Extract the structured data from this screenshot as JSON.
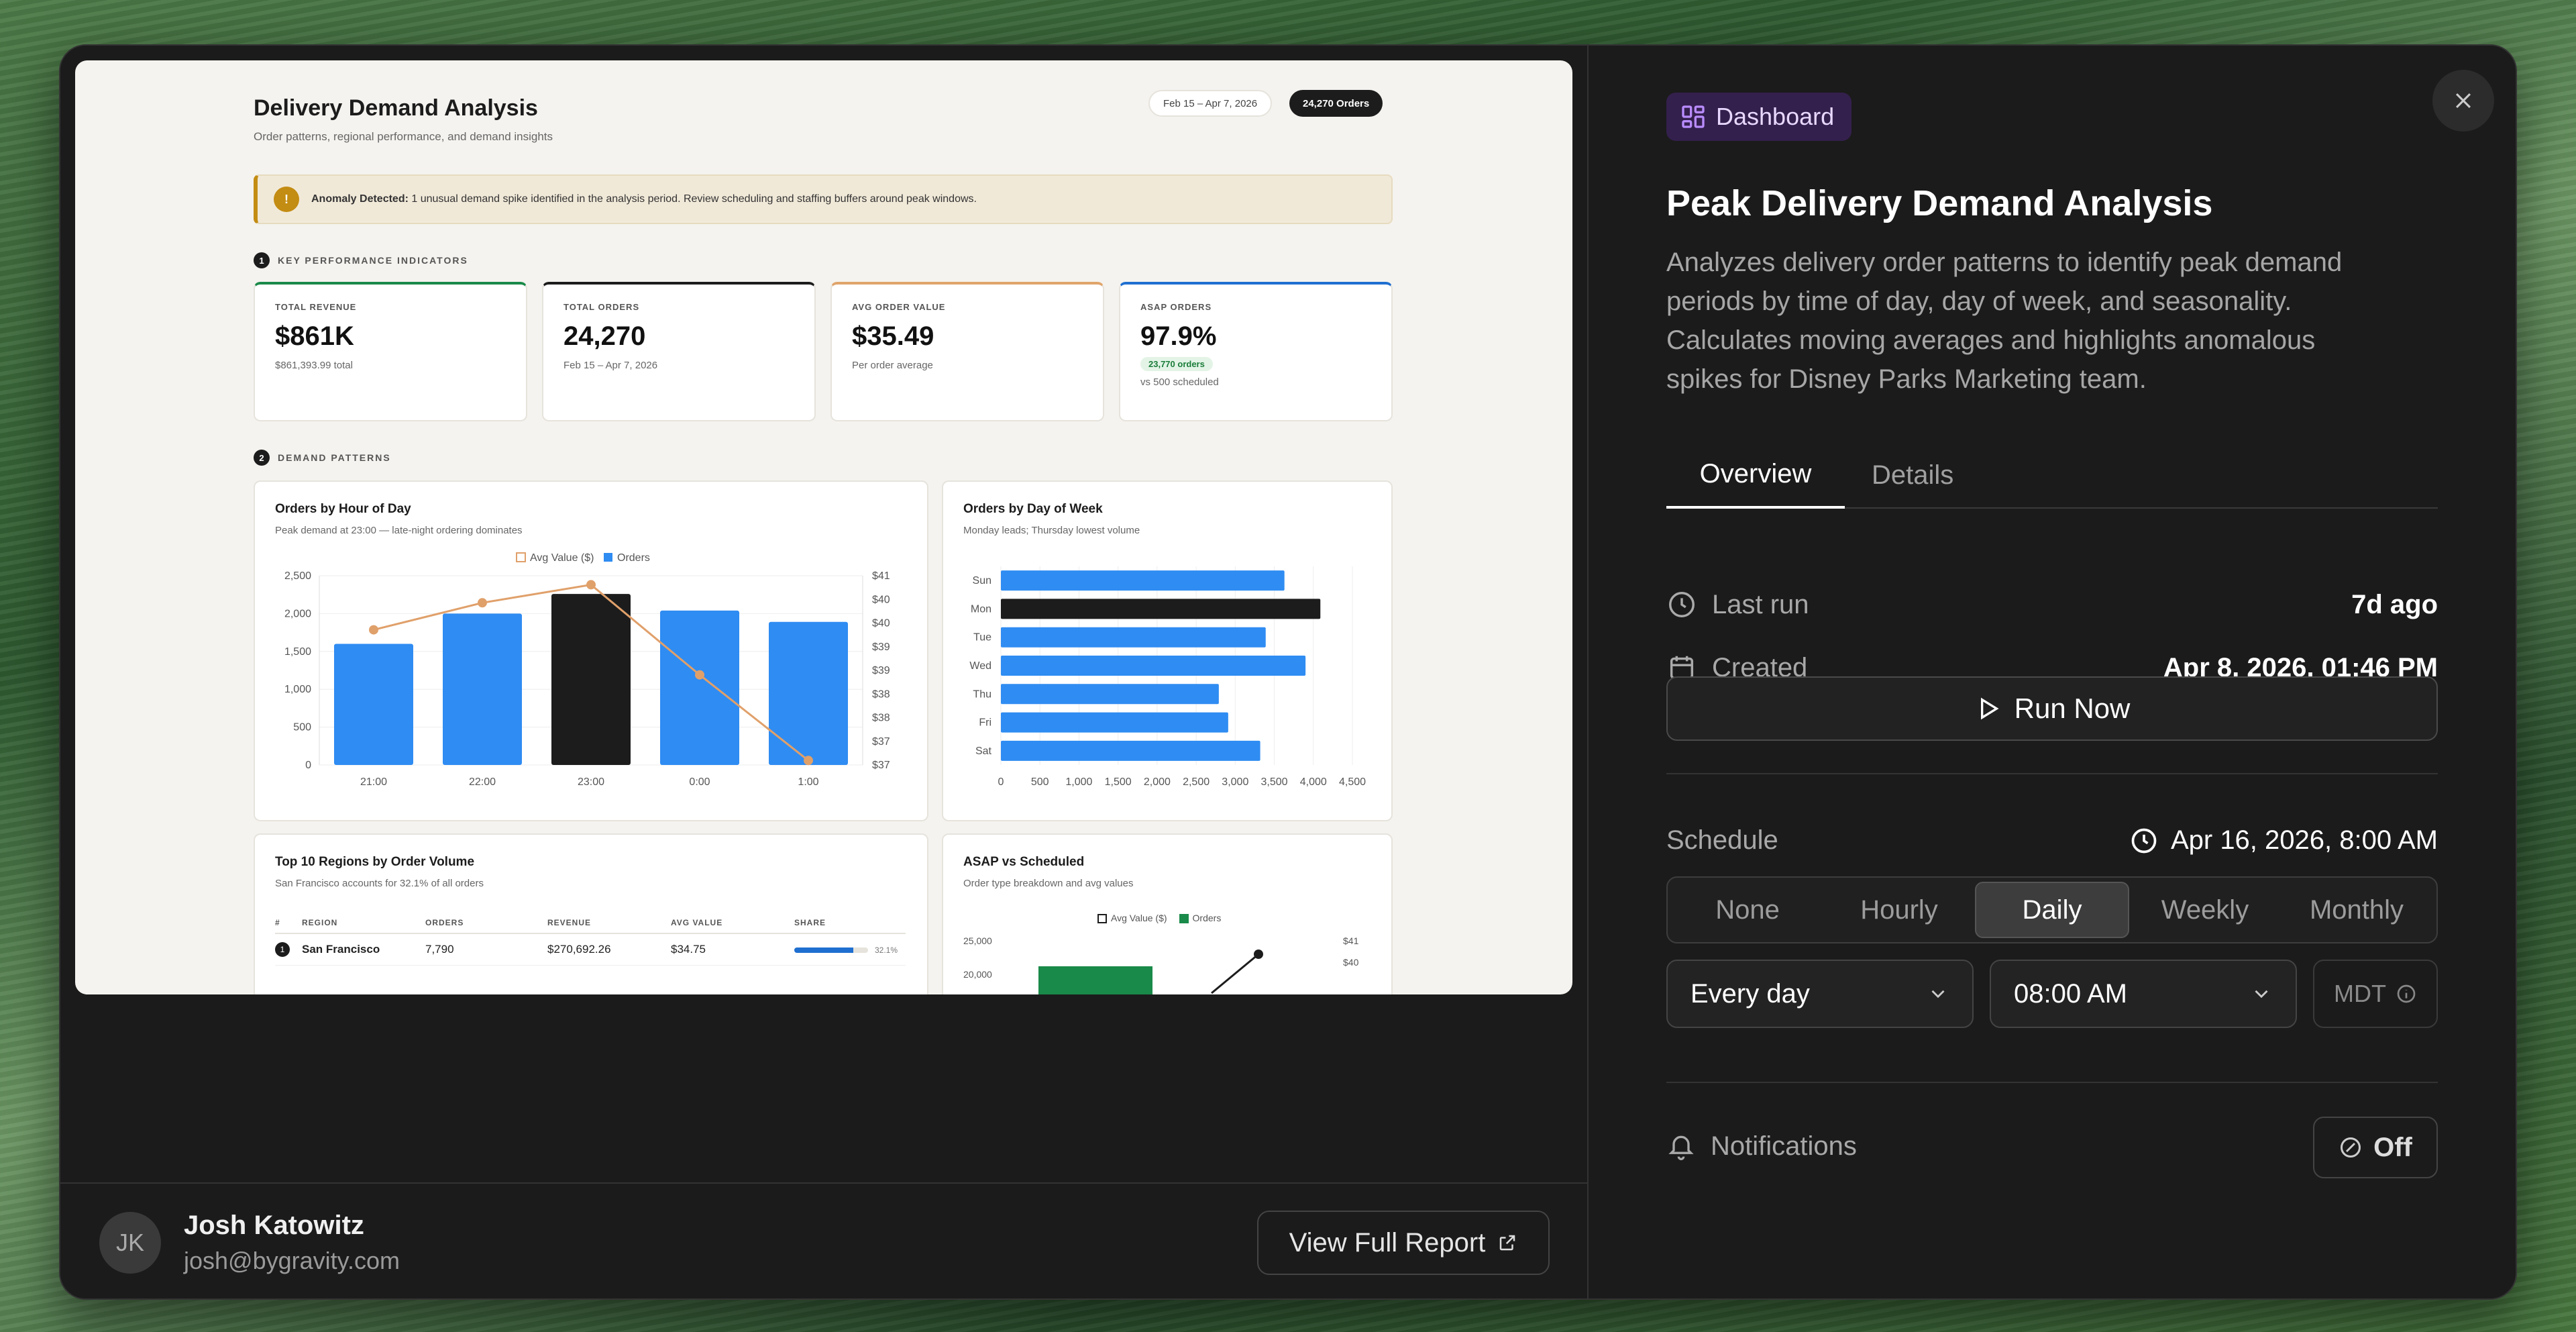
{
  "preview": {
    "title": "Delivery Demand Analysis",
    "subtitle": "Order patterns, regional performance, and demand insights",
    "date_pill": "Feb 15 – Apr 7, 2026",
    "orders_pill": "24,270 Orders",
    "alert_icon": "!",
    "alert_bold": "Anomaly Detected:",
    "alert_text": " 1 unusual demand spike identified in the analysis period. Review scheduling and staffing buffers around peak windows.",
    "section1_num": "1",
    "section1": "KEY PERFORMANCE INDICATORS",
    "section2_num": "2",
    "section2": "DEMAND PATTERNS",
    "kpis": [
      {
        "label": "TOTAL REVENUE",
        "value": "$861K",
        "sub": "$861,393.99 total",
        "color": "#1a8a4a"
      },
      {
        "label": "TOTAL ORDERS",
        "value": "24,270",
        "sub": "Feb 15 – Apr 7, 2026",
        "color": "#1c1c1c"
      },
      {
        "label": "AVG ORDER VALUE",
        "value": "$35.49",
        "sub": "Per order average",
        "color": "#e0a46a"
      },
      {
        "label": "ASAP ORDERS",
        "value": "97.9%",
        "tag": "23,770 orders",
        "sub": "vs 500 scheduled",
        "color": "#1f6fd0"
      }
    ],
    "hour_card": {
      "title": "Orders by Hour of Day",
      "subtitle": "Peak demand at 23:00 — late-night ordering dominates",
      "legend_line": "Avg Value ($)",
      "legend_bar": "Orders"
    },
    "week_card": {
      "title": "Orders by Day of Week",
      "subtitle": "Monday leads; Thursday lowest volume"
    },
    "regions_card": {
      "title": "Top 10 Regions by Order Volume",
      "subtitle": "San Francisco accounts for 32.1% of all orders",
      "headers": [
        "#",
        "REGION",
        "ORDERS",
        "REVENUE",
        "AVG VALUE",
        "SHARE"
      ],
      "rows": [
        {
          "rank": "1",
          "region": "San Francisco",
          "orders": "7,790",
          "revenue": "$270,692.26",
          "avg": "$34.75",
          "share": "32.1%",
          "share_frac": 0.321
        }
      ]
    },
    "asap_card": {
      "title": "ASAP vs Scheduled",
      "subtitle": "Order type breakdown and avg values",
      "legend_line": "Avg Value ($)",
      "legend_bar": "Orders",
      "y_ticks": [
        "25,000",
        "20,000"
      ],
      "y2_ticks": [
        "$41",
        "$40"
      ]
    }
  },
  "chart_data": [
    {
      "type": "bar",
      "title": "Orders by Hour of Day",
      "categories": [
        "21:00",
        "22:00",
        "23:00",
        "0:00",
        "1:00"
      ],
      "series": [
        {
          "name": "Orders",
          "values": [
            1600,
            2000,
            2260,
            2040,
            1890
          ]
        },
        {
          "name": "Avg Value ($)",
          "values": [
            39.8,
            40.4,
            40.8,
            38.8,
            36.9
          ]
        }
      ],
      "y_ticks": [
        "0",
        "500",
        "1,000",
        "1,500",
        "2,000",
        "2,500"
      ],
      "y2_ticks": [
        "$37",
        "$37",
        "$38",
        "$38",
        "$39",
        "$39",
        "$40",
        "$40",
        "$41"
      ],
      "ylim": [
        0,
        2500
      ],
      "y2lim": [
        36.8,
        41
      ],
      "highlight_index": 2,
      "colors": {
        "bar": "#2f8cf2",
        "highlight": "#1c1c1c",
        "line": "#e0a06a"
      }
    },
    {
      "type": "bar",
      "title": "Orders by Day of Week",
      "orientation": "horizontal",
      "categories": [
        "Sun",
        "Mon",
        "Tue",
        "Wed",
        "Thu",
        "Fri",
        "Sat"
      ],
      "values": [
        3630,
        4090,
        3390,
        3900,
        2790,
        2910,
        3320
      ],
      "x_ticks": [
        "0",
        "500",
        "1,000",
        "1,500",
        "2,000",
        "2,500",
        "3,000",
        "3,500",
        "4,000",
        "4,500"
      ],
      "xlim": [
        0,
        4500
      ],
      "highlight_index": 1,
      "colors": {
        "bar": "#2f8cf2",
        "highlight": "#1c1c1c"
      }
    }
  ],
  "footer": {
    "avatar": "JK",
    "name": "Josh Katowitz",
    "email": "josh@bygravity.com",
    "view_full_report": "View Full Report"
  },
  "panel": {
    "badge": "Dashboard",
    "title": "Peak Delivery Demand Analysis",
    "description": "Analyzes delivery order patterns to identify peak demand periods by time of day, day of week, and seasonality. Calculates moving averages and highlights anomalous spikes for Disney Parks Marketing team.",
    "tabs": [
      "Overview",
      "Details"
    ],
    "last_run_label": "Last run",
    "last_run_value": "7d ago",
    "created_label": "Created",
    "created_value": "Apr 8, 2026, 01:46 PM",
    "run_now": "Run Now",
    "schedule_label": "Schedule",
    "schedule_value": "Apr 16, 2026, 8:00 AM",
    "frequencies": [
      "None",
      "Hourly",
      "Daily",
      "Weekly",
      "Monthly"
    ],
    "selected_frequency": "Daily",
    "day_select": "Every day",
    "time_select": "08:00 AM",
    "timezone": "MDT",
    "notifications_label": "Notifications",
    "notifications_value": "Off"
  },
  "icons": [
    "close-icon",
    "dashboard-icon",
    "clock-icon",
    "calendar-icon",
    "play-icon",
    "chevron-down-icon",
    "info-icon",
    "bell-icon",
    "off-icon",
    "external-link-icon"
  ]
}
